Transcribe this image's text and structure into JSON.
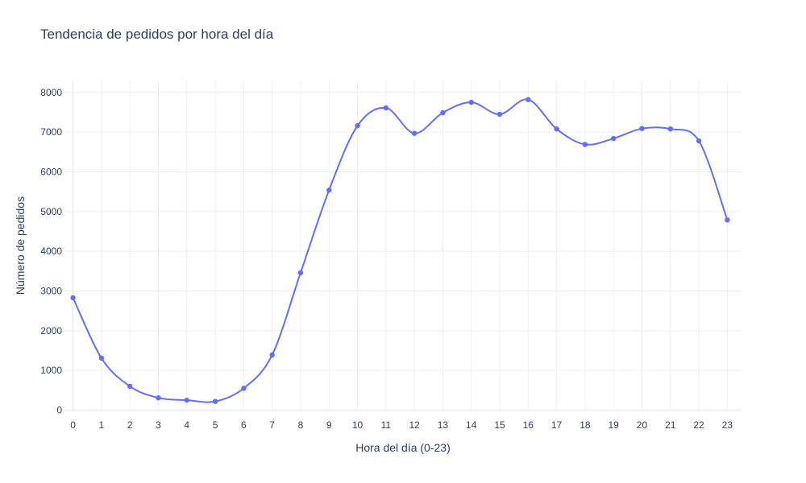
{
  "chart_data": {
    "type": "line",
    "title": "Tendencia de pedidos por hora del día",
    "xlabel": "Hora del día (0-23)",
    "ylabel": "Número de pedidos",
    "x": [
      0,
      1,
      2,
      3,
      4,
      5,
      6,
      7,
      8,
      9,
      10,
      11,
      12,
      13,
      14,
      15,
      16,
      17,
      18,
      19,
      20,
      21,
      22,
      23
    ],
    "y_ticks": [
      0,
      1000,
      2000,
      3000,
      4000,
      5000,
      6000,
      7000,
      8000
    ],
    "xlim": [
      -0.3,
      23.5
    ],
    "ylim": [
      -10,
      8300
    ],
    "grid": true,
    "line_shape": "spline",
    "markers": true,
    "series": [
      {
        "values": [
          2830,
          1310,
          600,
          310,
          250,
          220,
          550,
          1390,
          3460,
          5540,
          7160,
          7610,
          6970,
          7490,
          7750,
          7450,
          7820,
          7080,
          6690,
          6840,
          7090,
          7080,
          6780,
          4790
        ],
        "color": "#636efa"
      }
    ]
  }
}
